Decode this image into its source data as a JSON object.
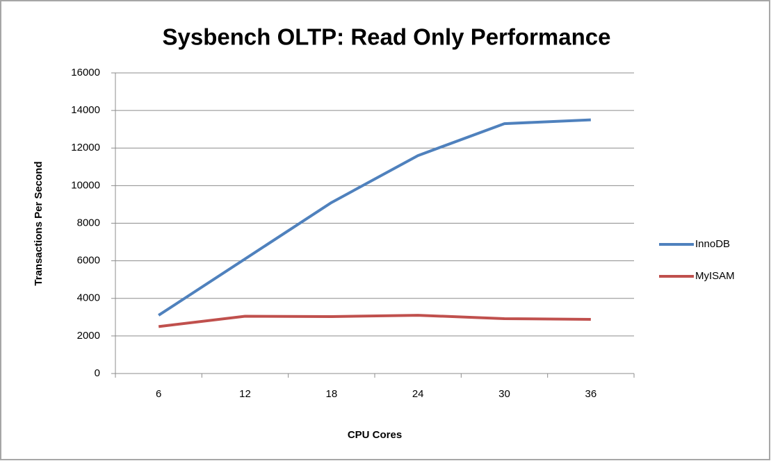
{
  "chart_data": {
    "type": "line",
    "title": "Sysbench OLTP: Read Only Performance",
    "x_label": "CPU Cores",
    "y_label": "Transactions Per Second",
    "categories": [
      "6",
      "12",
      "18",
      "24",
      "30",
      "36"
    ],
    "series": [
      {
        "name": "InnoDB",
        "color": "#4f81bd",
        "values": [
          3100,
          6100,
          9100,
          11600,
          13300,
          13500
        ]
      },
      {
        "name": "MyISAM",
        "color": "#c0504d",
        "values": [
          2500,
          3050,
          3030,
          3100,
          2920,
          2880
        ]
      }
    ],
    "ylim": [
      0,
      16000
    ],
    "yticks": [
      0,
      2000,
      4000,
      6000,
      8000,
      10000,
      12000,
      14000,
      16000
    ],
    "grid": true,
    "legend": "right"
  }
}
